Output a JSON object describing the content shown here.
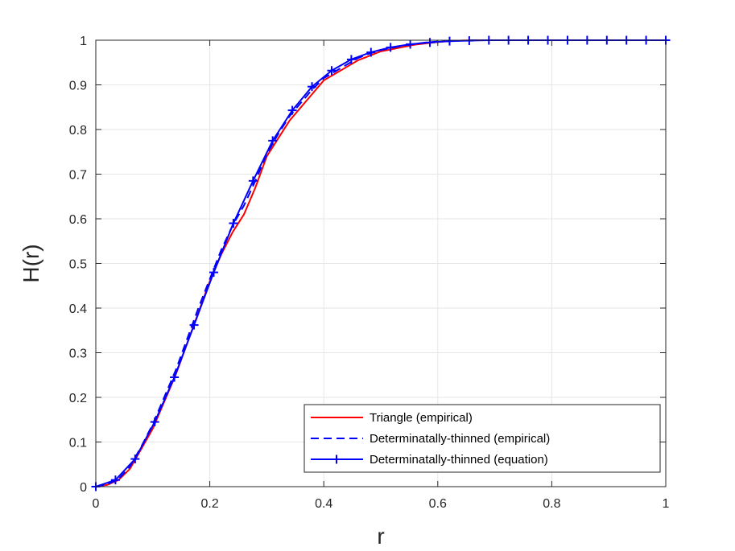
{
  "chart_data": {
    "type": "line",
    "xlabel": "r",
    "ylabel": "H(r)",
    "xlim": [
      0,
      1
    ],
    "ylim": [
      0,
      1
    ],
    "xticks": [
      0,
      0.2,
      0.4,
      0.6,
      0.8,
      1
    ],
    "xtick_labels": [
      "0",
      "0.2",
      "0.4",
      "0.6",
      "0.8",
      "1"
    ],
    "yticks": [
      0,
      0.1,
      0.2,
      0.3,
      0.4,
      0.5,
      0.6,
      0.7,
      0.8,
      0.9,
      1
    ],
    "ytick_labels": [
      "0",
      "0.1",
      "0.2",
      "0.3",
      "0.4",
      "0.5",
      "0.6",
      "0.7",
      "0.8",
      "0.9",
      "1"
    ],
    "grid": true,
    "legend_position": "bottom-right",
    "series": [
      {
        "name": "Triangle (empirical)",
        "color": "#ff0000",
        "style": "solid",
        "marker": "none",
        "x": [
          0,
          0.02,
          0.04,
          0.06,
          0.08,
          0.1,
          0.12,
          0.14,
          0.16,
          0.18,
          0.2,
          0.22,
          0.24,
          0.26,
          0.28,
          0.3,
          0.32,
          0.34,
          0.36,
          0.38,
          0.4,
          0.42,
          0.44,
          0.46,
          0.48,
          0.5,
          0.52,
          0.54,
          0.56,
          0.58,
          0.6,
          0.62,
          0.64,
          0.66,
          0.68,
          0.7,
          0.75,
          0.8,
          0.85,
          0.9,
          0.95,
          1
        ],
        "y": [
          0,
          0.004,
          0.015,
          0.04,
          0.085,
          0.13,
          0.19,
          0.25,
          0.32,
          0.39,
          0.46,
          0.52,
          0.57,
          0.61,
          0.67,
          0.74,
          0.78,
          0.82,
          0.85,
          0.88,
          0.91,
          0.925,
          0.94,
          0.955,
          0.965,
          0.975,
          0.98,
          0.985,
          0.99,
          0.993,
          0.996,
          0.998,
          0.999,
          1,
          1,
          1,
          1,
          1,
          1,
          1,
          1,
          1
        ]
      },
      {
        "name": "Determinatally-thinned (empirical)",
        "color": "#0000ff",
        "style": "dashed",
        "marker": "none",
        "x": [
          0,
          0.02,
          0.04,
          0.06,
          0.08,
          0.1,
          0.12,
          0.14,
          0.16,
          0.18,
          0.2,
          0.22,
          0.24,
          0.26,
          0.28,
          0.3,
          0.32,
          0.34,
          0.36,
          0.38,
          0.4,
          0.42,
          0.44,
          0.46,
          0.48,
          0.5,
          0.52,
          0.54,
          0.56,
          0.58,
          0.6,
          0.62,
          0.64,
          0.66,
          0.68,
          0.7,
          0.75,
          0.8,
          0.85,
          0.9,
          0.95,
          1
        ],
        "y": [
          0,
          0.005,
          0.017,
          0.045,
          0.09,
          0.14,
          0.2,
          0.26,
          0.33,
          0.4,
          0.465,
          0.53,
          0.585,
          0.63,
          0.685,
          0.745,
          0.79,
          0.83,
          0.86,
          0.89,
          0.915,
          0.93,
          0.945,
          0.96,
          0.97,
          0.978,
          0.983,
          0.988,
          0.992,
          0.995,
          0.997,
          0.998,
          0.999,
          1,
          1,
          1,
          1,
          1,
          1,
          1,
          1,
          1
        ]
      },
      {
        "name": "Determinatally-thinned (equation)",
        "color": "#0000ff",
        "style": "solid",
        "marker": "plus",
        "x": [
          0,
          0.0345,
          0.069,
          0.1034,
          0.1379,
          0.1724,
          0.2069,
          0.2414,
          0.2759,
          0.3103,
          0.3448,
          0.3793,
          0.4138,
          0.4483,
          0.4828,
          0.5172,
          0.5517,
          0.5862,
          0.6207,
          0.6552,
          0.6897,
          0.7241,
          0.7586,
          0.7931,
          0.8276,
          0.8621,
          0.8966,
          0.931,
          0.9655,
          1
        ],
        "y": [
          0,
          0.015,
          0.062,
          0.145,
          0.245,
          0.362,
          0.48,
          0.59,
          0.685,
          0.775,
          0.843,
          0.896,
          0.932,
          0.957,
          0.973,
          0.984,
          0.991,
          0.995,
          0.998,
          0.999,
          1,
          1,
          1,
          1,
          1,
          1,
          1,
          1,
          1,
          1
        ]
      }
    ]
  }
}
